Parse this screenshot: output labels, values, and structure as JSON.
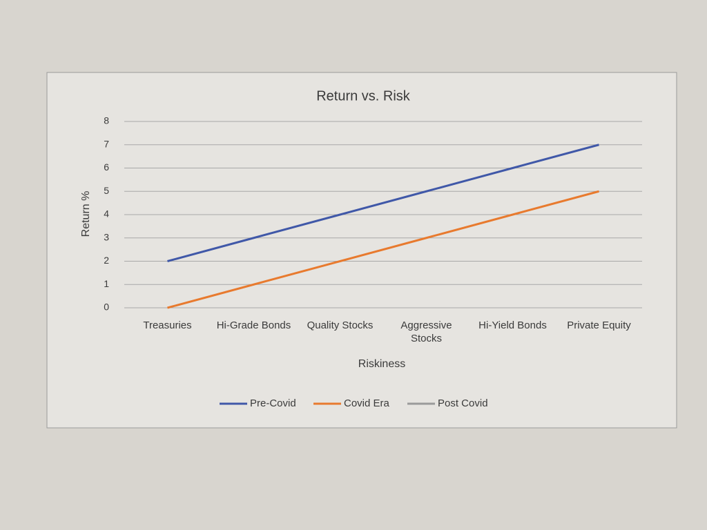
{
  "chart_data": {
    "type": "line",
    "title": "Return vs. Risk",
    "x_label": "Riskiness",
    "y_label": "Return %",
    "categories": [
      "Treasuries",
      "Hi-Grade Bonds",
      "Quality Stocks",
      "Aggressive Stocks",
      "Hi-Yield Bonds",
      "Private Equity"
    ],
    "series": [
      {
        "name": "Pre-Covid",
        "color": "#4058a8",
        "values": [
          2,
          3,
          4,
          5,
          6,
          7
        ]
      },
      {
        "name": "Covid Era",
        "color": "#e87a2e",
        "values": [
          0,
          1,
          2,
          3,
          4,
          5
        ]
      },
      {
        "name": "Post Covid",
        "color": "#9a9a9a",
        "values": [
          null,
          null,
          null,
          null,
          null,
          null
        ]
      }
    ],
    "ylim": [
      0,
      8
    ],
    "yticks": [
      0,
      1,
      2,
      3,
      4,
      5,
      6,
      7,
      8
    ],
    "grid": true,
    "legend": "bottom"
  }
}
